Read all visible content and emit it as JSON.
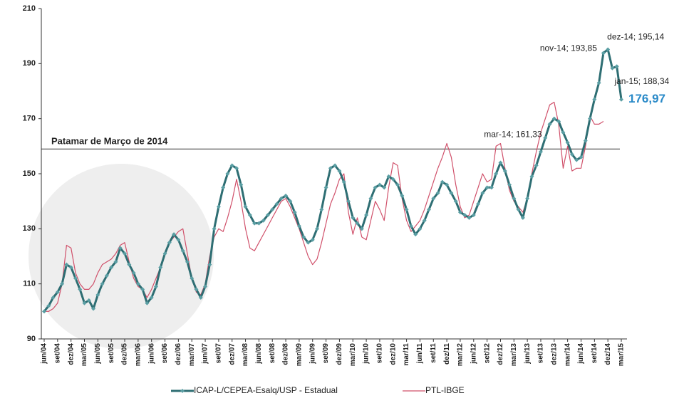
{
  "chart_data": {
    "type": "line",
    "categories": [
      "jun/04",
      null,
      null,
      "set/04",
      null,
      null,
      "dez/04",
      null,
      null,
      "mar/05",
      null,
      null,
      "jun/05",
      null,
      null,
      "set/05",
      null,
      null,
      "dez/05",
      null,
      null,
      "mar/06",
      null,
      null,
      "jun/06",
      null,
      null,
      "set/06",
      null,
      null,
      "dez/06",
      null,
      null,
      "mar/07",
      null,
      null,
      "jun/07",
      null,
      null,
      "set/07",
      null,
      null,
      "dez/07",
      null,
      null,
      "mar/08",
      null,
      null,
      "jun/08",
      null,
      null,
      "set/08",
      null,
      null,
      "dez/08",
      null,
      null,
      "mar/09",
      null,
      null,
      "jun/09",
      null,
      null,
      "set/09",
      null,
      null,
      "dez/09",
      null,
      null,
      "mar/10",
      null,
      null,
      "jun/10",
      null,
      null,
      "set/10",
      null,
      null,
      "dez/10",
      null,
      null,
      "mar/11",
      null,
      null,
      "jun/11",
      null,
      null,
      "set/11",
      null,
      null,
      "dez/11",
      null,
      null,
      "mar/12",
      null,
      null,
      "jun/12",
      null,
      null,
      "set/12",
      null,
      null,
      "dez/12",
      null,
      null,
      "mar/13",
      null,
      null,
      "jun/13",
      null,
      null,
      "set/13",
      null,
      null,
      "dez/13",
      null,
      null,
      "mar/14",
      null,
      null,
      "jun/14",
      null,
      null,
      "set/14",
      null,
      null,
      "dez/14",
      null,
      null,
      "mar/15"
    ],
    "series": [
      {
        "name": "ICAP-L/CEPEA-Esalq/USP - Estadual",
        "color": "#2e6e73",
        "markers": true,
        "values": [
          100,
          102,
          105,
          107,
          110,
          117,
          116,
          112,
          108,
          103,
          104,
          101,
          106,
          110,
          113,
          116,
          118,
          123,
          121,
          117,
          114,
          110,
          108,
          103,
          105,
          109,
          116,
          121,
          125,
          128,
          126,
          122,
          118,
          112,
          108,
          105,
          109,
          117,
          130,
          138,
          145,
          150,
          153,
          152,
          146,
          138,
          135,
          132,
          132,
          133,
          135,
          137,
          139,
          141,
          142,
          140,
          136,
          131,
          127,
          125,
          126,
          130,
          137,
          145,
          152,
          153,
          151,
          147,
          140,
          134,
          132,
          130,
          135,
          141,
          145,
          146,
          145,
          149,
          148,
          146,
          142,
          137,
          131,
          128,
          130,
          133,
          137,
          141,
          143,
          147,
          146,
          143,
          140,
          136,
          135,
          134,
          135,
          139,
          143,
          145,
          145,
          150,
          154,
          151,
          146,
          141,
          137,
          134,
          141,
          149,
          153,
          158,
          163,
          168,
          170,
          169,
          165,
          161.33,
          157,
          155,
          156,
          162,
          170,
          177,
          183,
          193.85,
          195.14,
          188.34,
          189,
          176.97
        ],
        "value_labels": [
          null,
          null,
          null,
          null,
          null,
          null,
          null,
          null,
          null,
          null,
          null,
          null,
          null,
          null,
          null,
          null,
          null,
          null,
          null,
          null,
          null,
          null,
          null,
          null,
          null,
          null,
          null,
          null,
          null,
          null,
          null,
          null,
          null,
          null,
          null,
          null,
          null,
          null,
          null,
          null,
          null,
          null,
          null,
          null,
          null,
          null,
          null,
          null,
          null,
          null,
          null,
          null,
          null,
          null,
          null,
          null,
          null,
          null,
          null,
          null,
          null,
          null,
          null,
          null,
          null,
          null,
          null,
          null,
          null,
          null,
          null,
          null,
          null,
          null,
          null,
          null,
          null,
          null,
          null,
          null,
          null,
          null,
          null,
          null,
          null,
          null,
          null,
          null,
          null,
          null,
          null,
          null,
          null,
          null,
          null,
          null,
          null,
          null,
          null,
          null,
          null,
          null,
          null,
          null,
          null,
          null,
          null,
          null,
          null,
          null,
          null,
          null,
          null,
          null,
          null,
          null,
          null,
          "mar-14; 161,33",
          null,
          null,
          null,
          null,
          null,
          null,
          null,
          "nov-14; 193,85",
          "dez-14; 195,14",
          "jan-15; 188,34",
          null,
          "176,97"
        ]
      },
      {
        "name": "PTL-IBGE",
        "color": "#d0506a",
        "markers": false,
        "values": [
          100,
          100,
          101,
          103,
          110,
          124,
          123,
          114,
          110,
          108,
          108,
          110,
          114,
          117,
          118,
          119,
          121,
          124,
          125,
          118,
          112,
          109,
          108,
          105,
          108,
          112,
          116,
          121,
          125,
          127,
          129,
          130,
          121,
          112,
          107,
          106,
          110,
          120,
          127,
          130,
          129,
          134,
          140,
          148,
          140,
          130,
          123,
          122,
          125,
          128,
          131,
          134,
          137,
          140,
          141,
          138,
          134,
          130,
          125,
          120,
          117,
          119,
          125,
          132,
          139,
          143,
          148,
          150,
          136,
          128,
          134,
          127,
          126,
          133,
          140,
          137,
          133,
          145,
          154,
          153,
          141,
          133,
          129,
          131,
          133,
          137,
          142,
          147,
          152,
          156,
          161,
          156,
          146,
          138,
          134,
          135,
          140,
          145,
          150,
          147,
          148,
          160,
          161,
          152,
          144,
          140,
          138,
          136,
          141,
          150,
          158,
          165,
          170,
          175,
          176,
          168,
          152,
          160,
          151,
          152,
          152,
          160,
          171,
          168,
          168,
          169,
          null,
          null,
          null,
          null
        ]
      }
    ],
    "ylim": [
      90,
      210
    ],
    "yticks": [
      90,
      110,
      130,
      150,
      170,
      190,
      210
    ],
    "reference_line": {
      "label": "Patamar de Março de 2014",
      "value": 159
    },
    "legend": "bottom",
    "grid": false
  }
}
